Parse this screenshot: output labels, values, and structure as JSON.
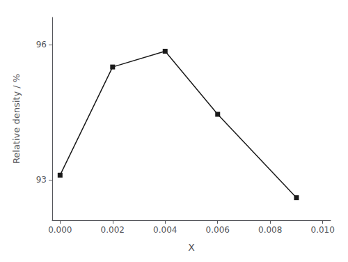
{
  "chart_data": {
    "type": "line",
    "x": [
      0.0,
      0.002,
      0.004,
      0.006,
      0.009
    ],
    "values": [
      93.1,
      95.5,
      95.85,
      94.45,
      92.6
    ],
    "color": "#1a1a1a",
    "marker": "square",
    "xlabel": "X",
    "ylabel": "Relative density / %",
    "xlim": [
      -0.0003,
      0.0103
    ],
    "ylim": [
      92.1,
      96.6
    ],
    "xticks": [
      {
        "value": 0.0,
        "label": "0.000"
      },
      {
        "value": 0.002,
        "label": "0.002"
      },
      {
        "value": 0.004,
        "label": "0.004"
      },
      {
        "value": 0.006,
        "label": "0.006"
      },
      {
        "value": 0.008,
        "label": "0.008"
      },
      {
        "value": 0.01,
        "label": "0.010"
      }
    ],
    "yticks": [
      93,
      96
    ],
    "grid": false
  }
}
